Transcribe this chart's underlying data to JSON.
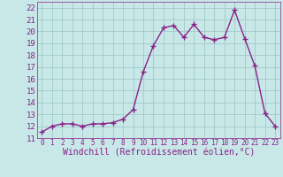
{
  "x": [
    0,
    1,
    2,
    3,
    4,
    5,
    6,
    7,
    8,
    9,
    10,
    11,
    12,
    13,
    14,
    15,
    16,
    17,
    18,
    19,
    20,
    21,
    22,
    23
  ],
  "y": [
    11.5,
    12.0,
    12.2,
    12.2,
    12.0,
    12.2,
    12.2,
    12.3,
    12.6,
    13.4,
    16.6,
    18.8,
    20.3,
    20.5,
    19.5,
    20.6,
    19.5,
    19.3,
    19.5,
    21.8,
    19.4,
    17.1,
    13.1,
    12.0
  ],
  "line_color": "#882288",
  "marker": "+",
  "bg_color": "#c8e8e8",
  "grid_color": "#a0c8c8",
  "xlabel": "Windchill (Refroidissement éolien,°C)",
  "ylabel": "",
  "ylim": [
    11,
    22.5
  ],
  "xlim": [
    -0.5,
    23.5
  ],
  "yticks": [
    11,
    12,
    13,
    14,
    15,
    16,
    17,
    18,
    19,
    20,
    21,
    22
  ],
  "xticks": [
    0,
    1,
    2,
    3,
    4,
    5,
    6,
    7,
    8,
    9,
    10,
    11,
    12,
    13,
    14,
    15,
    16,
    17,
    18,
    19,
    20,
    21,
    22,
    23
  ],
  "tick_color": "#882288",
  "label_color": "#882288",
  "axis_color": "#882288",
  "font_size": 6.5,
  "xlabel_font_size": 7,
  "xtick_font_size": 5.5,
  "ytick_font_size": 6.5,
  "line_width": 1.0,
  "marker_size": 4
}
